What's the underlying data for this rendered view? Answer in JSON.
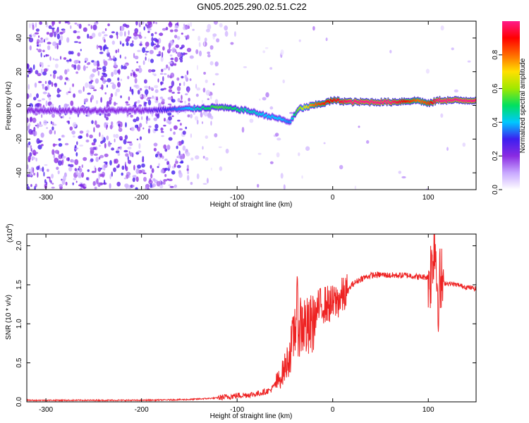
{
  "title": "GN05.2025.290.02.51.C22",
  "chart_data": [
    {
      "type": "heatmap",
      "xlabel": "Height of straight line (km)",
      "ylabel": "Frequency (Hz)",
      "xlim": [
        -320,
        150
      ],
      "ylim": [
        -50,
        50
      ],
      "x_ticks": [
        -300,
        -200,
        -100,
        0,
        100
      ],
      "x_tick_labels": [
        "-300",
        "-200",
        "-100",
        "0",
        "100"
      ],
      "y_ticks": [
        -40,
        -20,
        0,
        20,
        40
      ],
      "y_tick_labels": [
        "-40",
        "-20",
        "0",
        "20",
        "40"
      ],
      "colorbar": {
        "label": "Normalized spectral amplitude",
        "range": [
          0,
          1
        ],
        "ticks": [
          0,
          0.2,
          0.4,
          0.6,
          0.8
        ],
        "tick_labels": [
          "0.0",
          "0.2",
          "0.4",
          "0.6",
          "0.8"
        ],
        "colormap": [
          "#ffffff",
          "#c8a8ff",
          "#8a2be2",
          "#3d1ef0",
          "#00c8ff",
          "#00e060",
          "#a0e800",
          "#ffe000",
          "#ff6a00",
          "#ff0000",
          "#ff1a8a"
        ]
      },
      "dominant_band": {
        "x": [
          -320,
          -250,
          -200,
          -150,
          -120,
          -90,
          -70,
          -55,
          -45,
          -35,
          -20,
          -5,
          0,
          20,
          60,
          90,
          100,
          110,
          150
        ],
        "frequency": [
          -3,
          -3,
          -3,
          -2,
          -1,
          -3,
          -6,
          -8,
          -10,
          -2,
          0,
          2,
          3,
          2,
          2,
          3,
          1,
          3,
          3
        ],
        "amplitude": [
          0.2,
          0.2,
          0.2,
          0.4,
          0.55,
          0.45,
          0.4,
          0.4,
          0.35,
          0.6,
          0.8,
          0.9,
          0.9,
          1.0,
          1.0,
          0.8,
          0.85,
          1.0,
          1.0
        ]
      },
      "grid": false
    },
    {
      "type": "line",
      "xlabel": "Height of straight line (km)",
      "ylabel": "SNR (10 * v/v)",
      "y_multiplier": "(x10",
      "y_multiplier_exponent": "4",
      "xlim": [
        -320,
        150
      ],
      "ylim": [
        0,
        2.15
      ],
      "x_ticks": [
        -300,
        -200,
        -100,
        0,
        100
      ],
      "x_tick_labels": [
        "-300",
        "-200",
        "-100",
        "0",
        "100"
      ],
      "y_ticks": [
        0,
        0.5,
        1.0,
        1.5,
        2.0
      ],
      "y_tick_labels": [
        "0.0",
        "0.5",
        "1.0",
        "1.5",
        "2.0"
      ],
      "series": [
        {
          "color": "#ee2222",
          "x": [
            -320,
            -250,
            -200,
            -150,
            -120,
            -100,
            -80,
            -65,
            -55,
            -48,
            -42,
            -38,
            -35,
            -30,
            -25,
            -20,
            -15,
            -10,
            -5,
            0,
            5,
            10,
            15,
            20,
            30,
            40,
            50,
            60,
            70,
            80,
            90,
            100,
            104,
            106,
            108,
            110,
            112,
            115,
            120,
            130,
            140,
            150
          ],
          "y": [
            0.02,
            0.02,
            0.02,
            0.03,
            0.05,
            0.08,
            0.1,
            0.15,
            0.3,
            0.5,
            0.75,
            1.15,
            1.0,
            1.0,
            0.9,
            1.05,
            1.2,
            1.25,
            1.25,
            1.25,
            1.3,
            1.35,
            1.4,
            1.5,
            1.58,
            1.62,
            1.63,
            1.62,
            1.62,
            1.62,
            1.6,
            1.6,
            1.7,
            2.1,
            1.9,
            1.35,
            1.5,
            1.52,
            1.52,
            1.5,
            1.47,
            1.45
          ]
        }
      ],
      "grid": false
    }
  ]
}
